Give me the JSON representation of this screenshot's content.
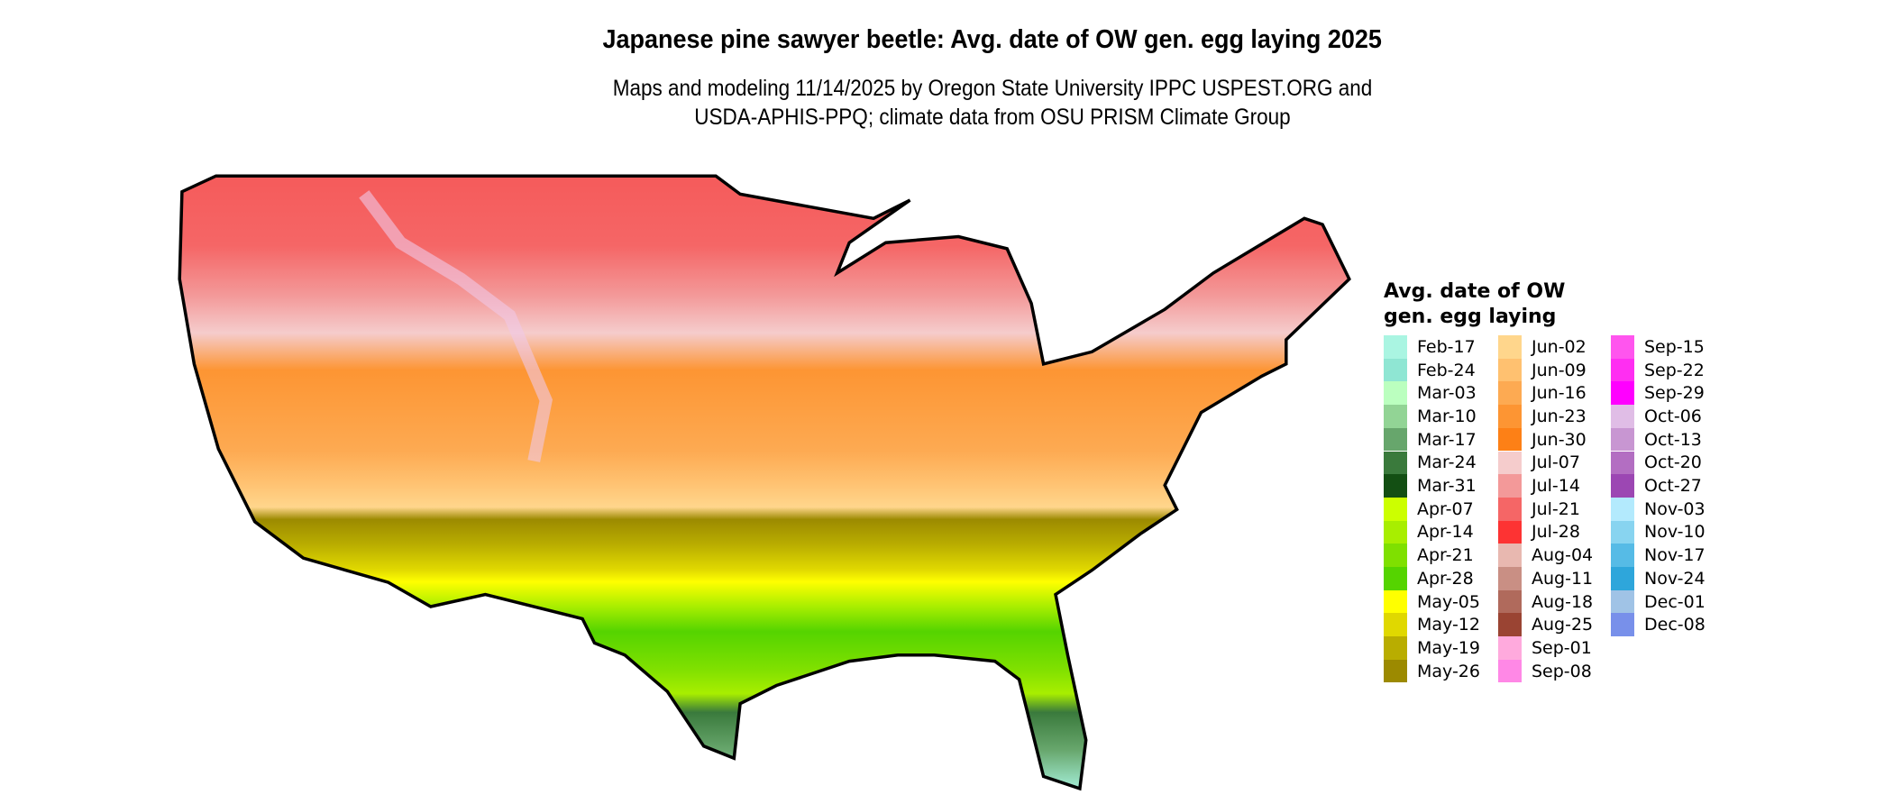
{
  "title": "Japanese pine sawyer beetle: Avg. date of OW gen. egg laying 2025",
  "subtitle_lines": [
    "Maps and modeling 11/14/2025 by Oregon State University IPPC USPEST.ORG and",
    "USDA-APHIS-PPQ; climate data from OSU PRISM Climate Group"
  ],
  "legend": {
    "title_lines": [
      "Avg. date of OW",
      "gen. egg laying"
    ],
    "items": [
      {
        "label": "Feb-17",
        "color": "#aaf5e2"
      },
      {
        "label": "Feb-24",
        "color": "#8fe6d3"
      },
      {
        "label": "Mar-03",
        "color": "#bbffbf"
      },
      {
        "label": "Mar-10",
        "color": "#92d495"
      },
      {
        "label": "Mar-17",
        "color": "#67a66c"
      },
      {
        "label": "Mar-24",
        "color": "#3a7a3c"
      },
      {
        "label": "Mar-31",
        "color": "#134f13"
      },
      {
        "label": "Apr-07",
        "color": "#ccff00"
      },
      {
        "label": "Apr-14",
        "color": "#a8ee00"
      },
      {
        "label": "Apr-21",
        "color": "#7fe000"
      },
      {
        "label": "Apr-28",
        "color": "#55d400"
      },
      {
        "label": "May-05",
        "color": "#ffff00"
      },
      {
        "label": "May-12",
        "color": "#e0d800"
      },
      {
        "label": "May-19",
        "color": "#b9ad00"
      },
      {
        "label": "May-26",
        "color": "#9c8a00"
      },
      {
        "label": "Jun-02",
        "color": "#ffd68c"
      },
      {
        "label": "Jun-09",
        "color": "#ffc170"
      },
      {
        "label": "Jun-16",
        "color": "#fdaa52"
      },
      {
        "label": "Jun-23",
        "color": "#fd9533"
      },
      {
        "label": "Jun-30",
        "color": "#fd8016"
      },
      {
        "label": "Jul-07",
        "color": "#f5cccc"
      },
      {
        "label": "Jul-14",
        "color": "#f39999"
      },
      {
        "label": "Jul-21",
        "color": "#f56666"
      },
      {
        "label": "Jul-28",
        "color": "#fd3333"
      },
      {
        "label": "Aug-04",
        "color": "#e8b8b0"
      },
      {
        "label": "Aug-11",
        "color": "#c98f84"
      },
      {
        "label": "Aug-18",
        "color": "#b06a5c"
      },
      {
        "label": "Aug-25",
        "color": "#9a4433"
      },
      {
        "label": "Sep-01",
        "color": "#ffaadd"
      },
      {
        "label": "Sep-08",
        "color": "#ff88e6"
      },
      {
        "label": "Sep-15",
        "color": "#ff55ee"
      },
      {
        "label": "Sep-22",
        "color": "#ff2ef2"
      },
      {
        "label": "Sep-29",
        "color": "#ff00ff"
      },
      {
        "label": "Oct-06",
        "color": "#e0bde6"
      },
      {
        "label": "Oct-13",
        "color": "#c896d2"
      },
      {
        "label": "Oct-20",
        "color": "#b36ec2"
      },
      {
        "label": "Oct-27",
        "color": "#9c47b3"
      },
      {
        "label": "Nov-03",
        "color": "#b3eafd"
      },
      {
        "label": "Nov-10",
        "color": "#88d4f0"
      },
      {
        "label": "Nov-17",
        "color": "#56bbe6"
      },
      {
        "label": "Nov-24",
        "color": "#2ea6db"
      },
      {
        "label": "Dec-01",
        "color": "#a0c3e6"
      },
      {
        "label": "Dec-08",
        "color": "#7890ea"
      }
    ]
  }
}
